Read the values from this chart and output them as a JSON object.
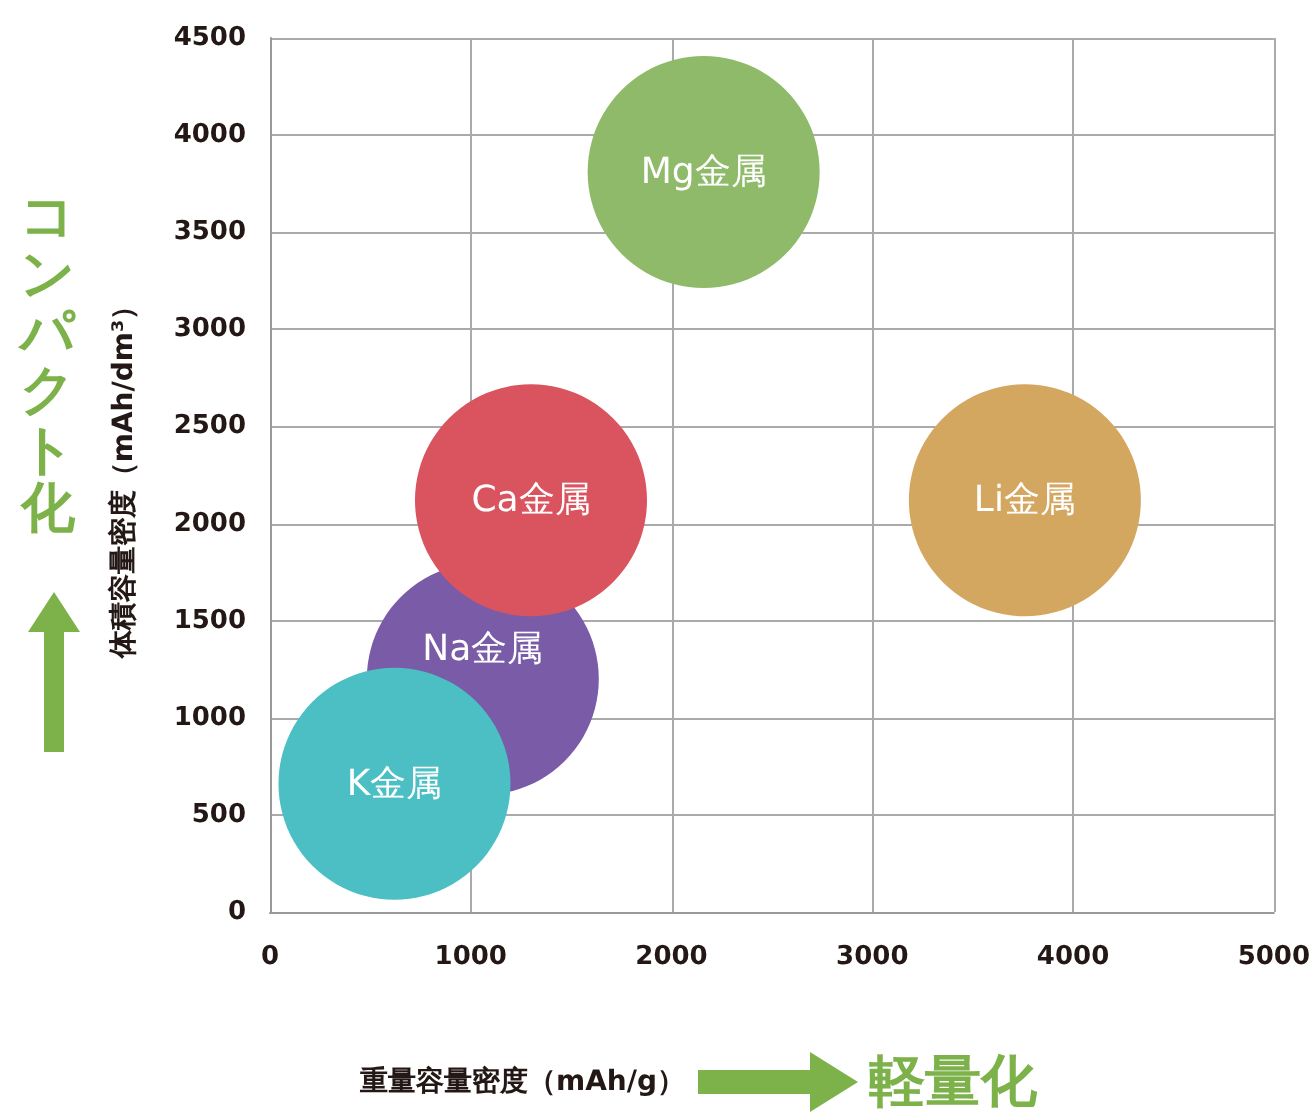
{
  "chart_data": {
    "type": "bubble",
    "xlabel": "重量容量密度（mAh/g）",
    "ylabel": "体積容量密度（mAh/dm³）",
    "xlim": [
      0,
      5000
    ],
    "xticks": [
      0,
      1000,
      2000,
      3000,
      4000,
      5000
    ],
    "ylim": [
      0,
      4500
    ],
    "yticks": [
      0,
      500,
      1000,
      1500,
      2000,
      2500,
      3000,
      3500,
      4000,
      4500
    ],
    "grid": true,
    "legend": false,
    "series": [
      {
        "name": "Na金属",
        "color": "#7a5ba8",
        "x": [
          1060
        ],
        "values": [
          1200
        ],
        "sizes": [
          1
        ]
      },
      {
        "name": "Ca金属",
        "color": "#d9545f",
        "x": [
          1300
        ],
        "values": [
          2120
        ],
        "sizes": [
          1
        ]
      },
      {
        "name": "K金属",
        "color": "#4bbfc4",
        "x": [
          620
        ],
        "values": [
          660
        ],
        "sizes": [
          1
        ]
      },
      {
        "name": "Mg金属",
        "color": "#8fba6a",
        "x": [
          2160
        ],
        "values": [
          3810
        ],
        "sizes": [
          1
        ]
      },
      {
        "name": "Li金属",
        "color": "#d4a760",
        "x": [
          3760
        ],
        "values": [
          2120
        ],
        "sizes": [
          1
        ]
      }
    ],
    "annotations": [
      "コンパクト化",
      "軽量化"
    ]
  }
}
